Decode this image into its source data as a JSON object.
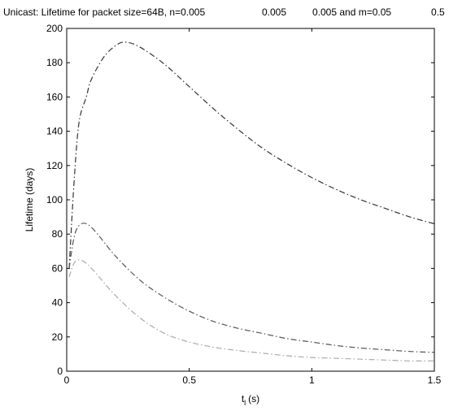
{
  "chart_data": {
    "type": "line",
    "title_parts": [
      "Unicast: Lifetime for packet size=64B, n=0.005",
      "0.005",
      "0.005 and m=0.05",
      "0.5"
    ],
    "xlabel": "t",
    "xlabel_subscript": "l",
    "xlabel_unit": "(s)",
    "ylabel": "Lifetime (days)",
    "xlim": [
      0,
      1.5
    ],
    "ylim": [
      0,
      200
    ],
    "xticks": [
      0,
      0.5,
      1,
      1.5
    ],
    "xtick_labels": [
      "0",
      "0.5",
      "1",
      "1.5"
    ],
    "yticks": [
      0,
      20,
      40,
      60,
      80,
      100,
      120,
      140,
      160,
      180,
      200
    ],
    "ytick_labels": [
      "0",
      "20",
      "40",
      "60",
      "80",
      "100",
      "120",
      "140",
      "160",
      "180",
      "200"
    ],
    "grid": false,
    "series": [
      {
        "color": "#333333",
        "x": [
          0.01,
          0.03,
          0.05,
          0.08,
          0.1,
          0.15,
          0.2,
          0.24,
          0.3,
          0.4,
          0.5,
          0.6,
          0.7,
          0.8,
          0.9,
          1.0,
          1.1,
          1.2,
          1.3,
          1.4,
          1.5
        ],
        "y": [
          60,
          110,
          145,
          160,
          170,
          183,
          190,
          192,
          189,
          179,
          166,
          153,
          141,
          130,
          121,
          113,
          106,
          100,
          95,
          90,
          86
        ]
      },
      {
        "color": "#555555",
        "x": [
          0.01,
          0.03,
          0.05,
          0.08,
          0.12,
          0.2,
          0.3,
          0.4,
          0.5,
          0.6,
          0.7,
          0.8,
          0.9,
          1.0,
          1.1,
          1.2,
          1.3,
          1.4,
          1.5
        ],
        "y": [
          60,
          78,
          85,
          86,
          81,
          67,
          53,
          43,
          35,
          29,
          25,
          22,
          19,
          17,
          15,
          13.5,
          12.5,
          11.5,
          11
        ]
      },
      {
        "color": "#aaaaaa",
        "x": [
          0.01,
          0.03,
          0.05,
          0.08,
          0.12,
          0.2,
          0.3,
          0.4,
          0.5,
          0.6,
          0.7,
          0.8,
          0.9,
          1.0,
          1.1,
          1.2,
          1.3,
          1.4,
          1.5
        ],
        "y": [
          55,
          63,
          65,
          63,
          57,
          44,
          31,
          22,
          17,
          14,
          12,
          10.5,
          9,
          8,
          7.5,
          7,
          6.5,
          6,
          6
        ]
      }
    ]
  }
}
